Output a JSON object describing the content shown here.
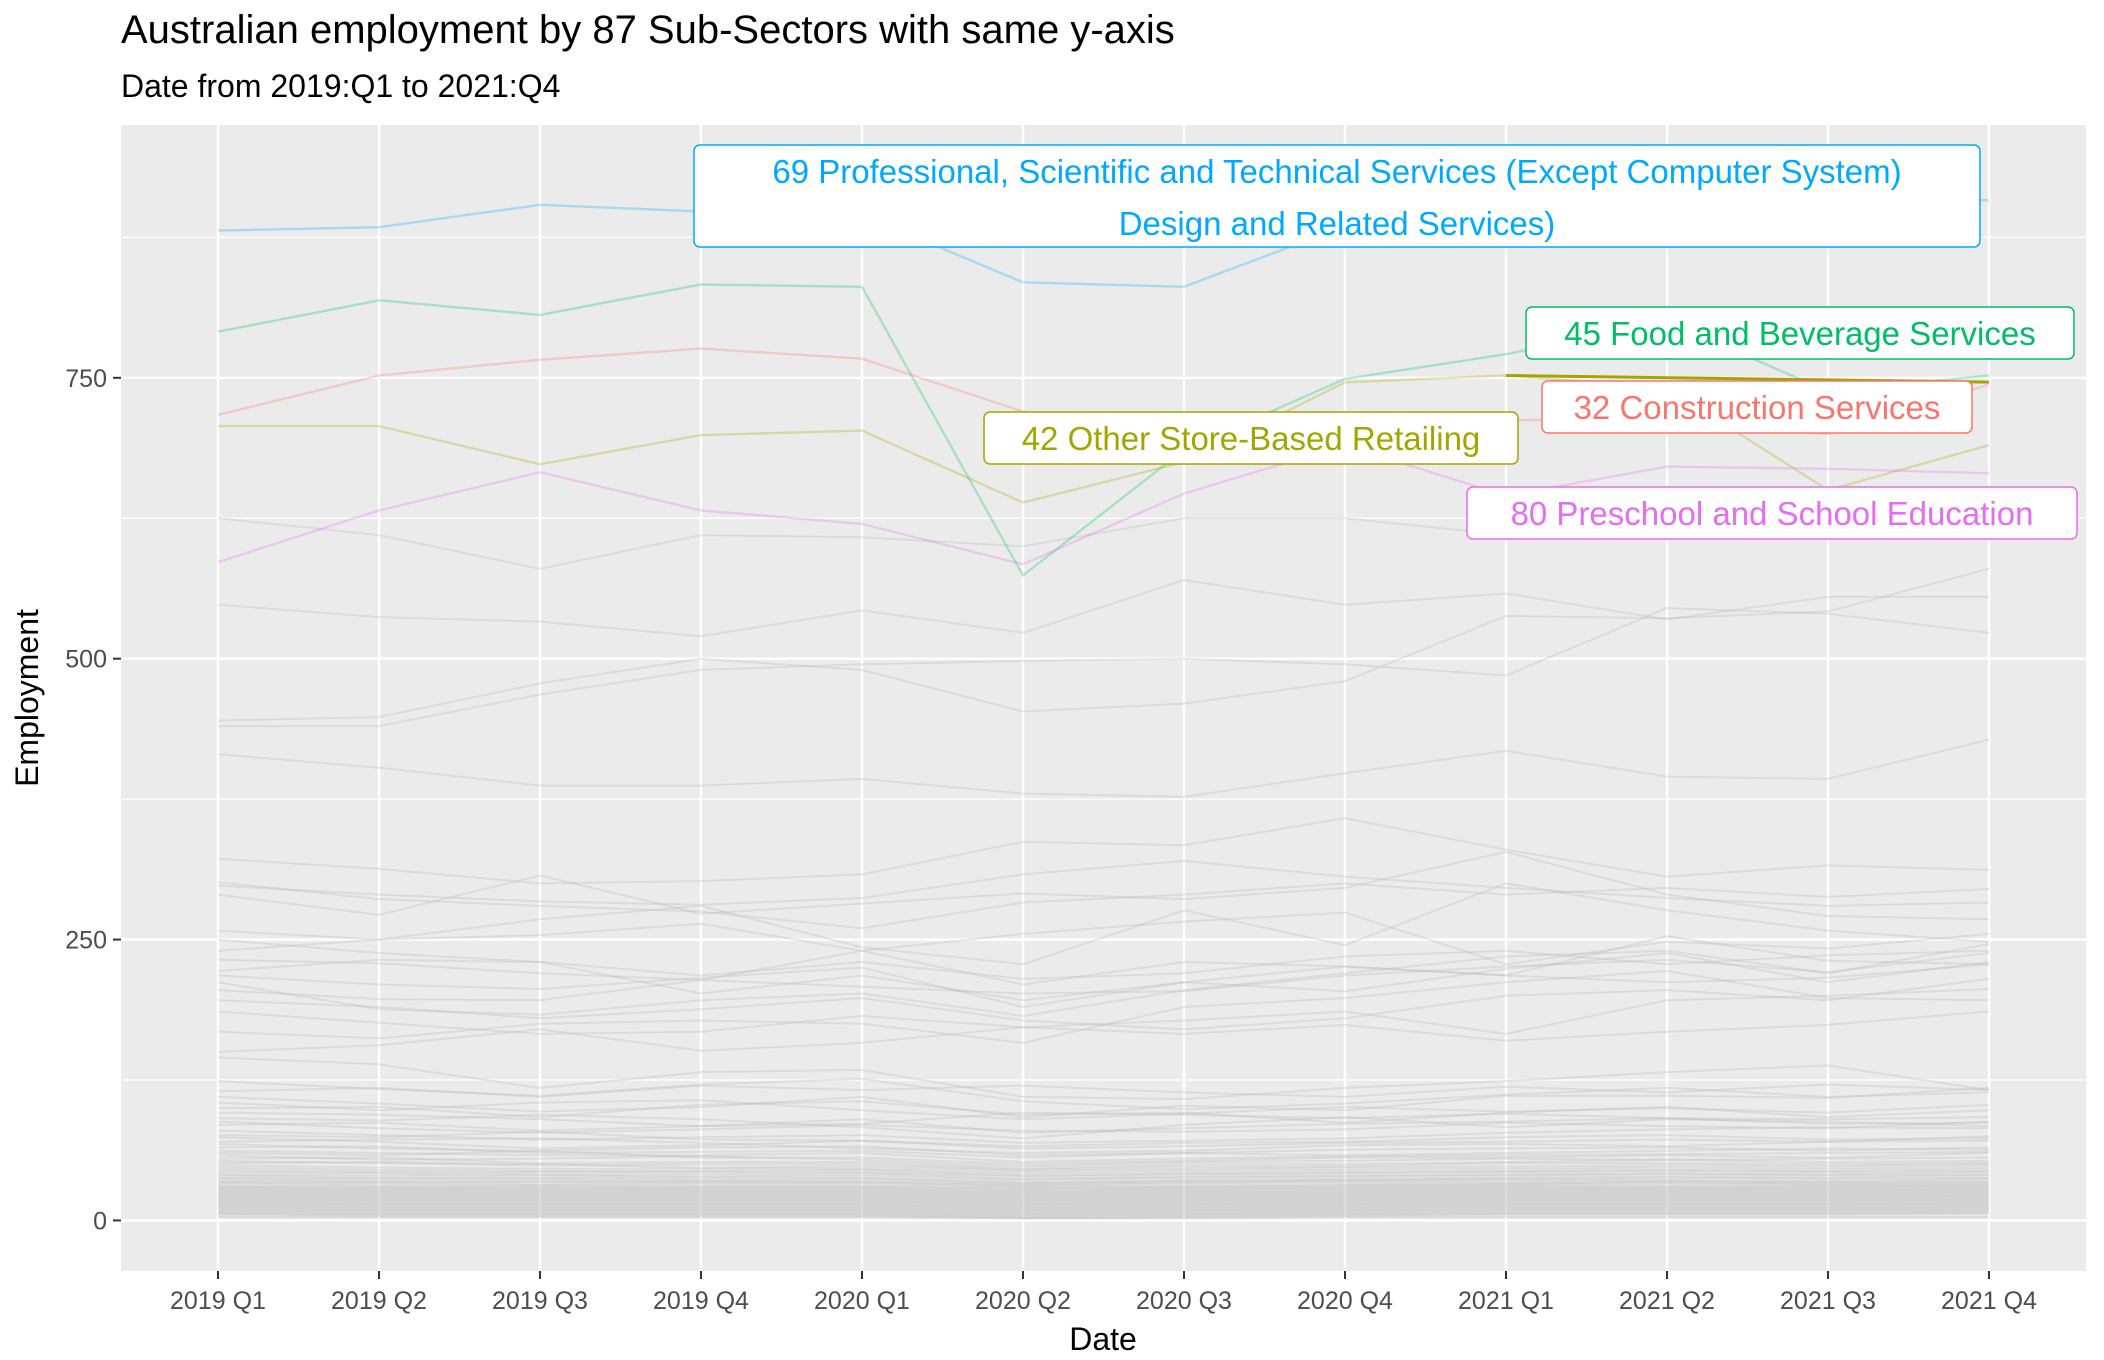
{
  "chart_data": {
    "type": "line",
    "title": "Australian employment by 87 Sub-Sectors with same y-axis",
    "subtitle": "Date from 2019:Q1 to 2021:Q4",
    "xlabel": "Date",
    "ylabel": "Employment",
    "x": [
      "2019 Q1",
      "2019 Q2",
      "2019 Q3",
      "2019 Q4",
      "2020 Q1",
      "2020 Q2",
      "2020 Q3",
      "2020 Q4",
      "2021 Q1",
      "2021 Q2",
      "2021 Q3",
      "2021 Q4"
    ],
    "ylim": [
      -45,
      975
    ],
    "yticks": [
      0,
      250,
      500,
      750
    ],
    "grid": true,
    "background": "#EBEBEB",
    "highlighted_series": [
      {
        "name": "69 Professional, Scientific and Technical Services (Except Computer System) Design and Related Services)",
        "label_lines": [
          "69 Professional, Scientific and Technical Services (Except Computer System)",
          "Design and Related Services)"
        ],
        "color": "#00A9FF",
        "values": [
          881,
          884,
          904,
          898,
          895,
          835,
          831,
          885,
          910,
          905,
          910,
          908
        ]
      },
      {
        "name": "45 Food and Beverage Services",
        "label_lines": [
          "45 Food and Beverage Services"
        ],
        "color": "#00BE67",
        "values": [
          791,
          819,
          806,
          833,
          831,
          574,
          686,
          749,
          771,
          800,
          738,
          752
        ]
      },
      {
        "name": "32 Construction Services",
        "label_lines": [
          "32 Construction Services"
        ],
        "color": "#F8766D",
        "values": [
          717,
          752,
          766,
          776,
          767,
          720,
          698,
          712,
          712,
          715,
          700,
          744
        ]
      },
      {
        "name": "42 Other Store-Based Retailing",
        "label_lines": [
          "42 Other Store-Based Retailing"
        ],
        "color": "#A3A500",
        "values": [
          707,
          707,
          673,
          699,
          703,
          639,
          675,
          746,
          752,
          741,
          650,
          690
        ]
      },
      {
        "name": "80 Preschool and School Education",
        "label_lines": [
          "80 Preschool and School Education"
        ],
        "color": "#E76BF3",
        "values": [
          586,
          632,
          666,
          632,
          620,
          584,
          647,
          690,
          645,
          671,
          669,
          665
        ]
      }
    ],
    "other_sectors": {
      "count": 82,
      "color": "#BEBEBE",
      "series": [
        [
          625,
          610,
          580,
          610,
          608,
          600,
          625,
          625,
          610,
          640,
          645,
          640
        ],
        [
          548,
          537,
          533,
          520,
          543,
          523,
          570,
          548,
          558,
          535,
          555,
          555
        ],
        [
          445,
          448,
          478,
          500,
          490,
          453,
          460,
          480,
          538,
          536,
          542,
          580
        ],
        [
          440,
          440,
          468,
          490,
          495,
          498,
          500,
          495,
          485,
          545,
          540,
          523
        ],
        [
          415,
          403,
          387,
          387,
          393,
          380,
          377,
          398,
          418,
          395,
          393,
          428
        ],
        [
          322,
          313,
          300,
          302,
          308,
          337,
          334,
          358,
          330,
          306,
          316,
          312
        ],
        [
          301,
          286,
          280,
          275,
          260,
          283,
          290,
          300,
          290,
          296,
          288,
          295
        ],
        [
          298,
          290,
          284,
          281,
          287,
          308,
          320,
          306,
          296,
          287,
          280,
          283
        ],
        [
          290,
          272,
          307,
          273,
          282,
          291,
          286,
          296,
          328,
          290,
          271,
          268
        ],
        [
          258,
          250,
          254,
          264,
          240,
          255,
          266,
          274,
          228,
          248,
          242,
          255
        ],
        [
          250,
          238,
          230,
          218,
          230,
          215,
          220,
          235,
          240,
          228,
          236,
          240
        ],
        [
          240,
          250,
          268,
          280,
          243,
          228,
          276,
          245,
          300,
          276,
          258,
          248
        ],
        [
          232,
          229,
          220,
          214,
          240,
          210,
          230,
          226,
          218,
          253,
          231,
          228
        ],
        [
          222,
          232,
          230,
          202,
          218,
          196,
          212,
          226,
          218,
          212,
          216,
          228
        ],
        [
          218,
          210,
          206,
          216,
          225,
          190,
          212,
          204,
          224,
          238,
          212,
          230
        ],
        [
          212,
          188,
          183,
          196,
          202,
          182,
          205,
          220,
          235,
          240,
          220,
          246
        ],
        [
          205,
          197,
          196,
          214,
          208,
          202,
          204,
          218,
          226,
          232,
          221,
          238
        ],
        [
          196,
          190,
          180,
          188,
          198,
          178,
          170,
          180,
          200,
          205,
          196,
          215
        ],
        [
          186,
          176,
          166,
          168,
          182,
          172,
          178,
          186,
          166,
          196,
          200,
          206
        ],
        [
          168,
          162,
          175,
          178,
          175,
          158,
          190,
          198,
          212,
          222,
          198,
          196
        ],
        [
          150,
          156,
          170,
          151,
          158,
          172,
          166,
          174,
          160,
          168,
          174,
          186
        ],
        [
          145,
          139,
          118,
          132,
          134,
          110,
          108,
          118,
          124,
          132,
          138,
          116
        ],
        [
          124,
          117,
          111,
          121,
          126,
          106,
          99,
          104,
          112,
          118,
          110,
          114
        ],
        [
          115,
          118,
          110,
          120,
          116,
          120,
          114,
          110,
          119,
          114,
          121,
          116
        ],
        [
          110,
          104,
          97,
          101,
          110,
          92,
          102,
          98,
          111,
          111,
          109,
          118
        ],
        [
          105,
          98,
          105,
          107,
          98,
          90,
          95,
          101,
          97,
          100,
          96,
          103
        ],
        [
          100,
          101,
          92,
          103,
          106,
          94,
          96,
          87,
          96,
          101,
          92,
          98
        ],
        [
          96,
          94,
          90,
          84,
          86,
          96,
          94,
          91,
          95,
          91,
          90,
          92
        ],
        [
          91,
          89,
          94,
          90,
          83,
          73,
          85,
          92,
          83,
          90,
          88,
          84
        ],
        [
          88,
          82,
          78,
          81,
          85,
          80,
          79,
          81,
          87,
          84,
          82,
          88
        ],
        [
          85,
          87,
          80,
          84,
          90,
          78,
          82,
          86,
          88,
          91,
          86,
          87
        ],
        [
          80,
          76,
          72,
          74,
          76,
          69,
          71,
          73,
          78,
          81,
          83,
          82
        ],
        [
          76,
          74,
          79,
          72,
          71,
          66,
          69,
          70,
          74,
          76,
          72,
          73
        ],
        [
          74,
          70,
          64,
          67,
          71,
          64,
          66,
          69,
          70,
          72,
          70,
          75
        ],
        [
          70,
          72,
          73,
          69,
          64,
          60,
          62,
          67,
          68,
          66,
          70,
          71
        ],
        [
          68,
          64,
          62,
          65,
          66,
          58,
          60,
          63,
          64,
          65,
          62,
          65
        ],
        [
          65,
          66,
          60,
          61,
          62,
          56,
          60,
          58,
          60,
          62,
          64,
          63
        ],
        [
          62,
          60,
          58,
          58,
          60,
          52,
          55,
          57,
          58,
          59,
          60,
          61
        ],
        [
          60,
          58,
          62,
          56,
          56,
          50,
          53,
          56,
          56,
          58,
          56,
          60
        ],
        [
          58,
          54,
          55,
          57,
          54,
          48,
          52,
          53,
          55,
          54,
          55,
          56
        ],
        [
          55,
          56,
          51,
          52,
          52,
          46,
          50,
          50,
          52,
          54,
          52,
          53
        ],
        [
          53,
          51,
          49,
          50,
          50,
          45,
          48,
          48,
          51,
          51,
          50,
          51
        ],
        [
          51,
          52,
          50,
          47,
          48,
          44,
          46,
          47,
          48,
          49,
          48,
          50
        ],
        [
          49,
          47,
          46,
          46,
          46,
          42,
          44,
          45,
          46,
          47,
          46,
          48
        ],
        [
          47,
          45,
          44,
          44,
          45,
          40,
          42,
          43,
          44,
          45,
          44,
          46
        ],
        [
          45,
          43,
          43,
          43,
          43,
          39,
          41,
          42,
          43,
          44,
          43,
          44
        ],
        [
          43,
          42,
          41,
          41,
          42,
          37,
          39,
          40,
          41,
          42,
          41,
          43
        ],
        [
          41,
          40,
          40,
          39,
          40,
          36,
          38,
          39,
          40,
          41,
          40,
          41
        ],
        [
          40,
          38,
          38,
          38,
          38,
          34,
          36,
          37,
          38,
          39,
          38,
          40
        ],
        [
          38,
          37,
          37,
          36,
          37,
          33,
          35,
          36,
          37,
          38,
          37,
          38
        ],
        [
          37,
          35,
          35,
          35,
          35,
          32,
          34,
          35,
          36,
          36,
          35,
          37
        ],
        [
          35,
          34,
          34,
          34,
          34,
          31,
          33,
          34,
          34,
          35,
          34,
          35
        ],
        [
          34,
          33,
          32,
          33,
          33,
          30,
          31,
          32,
          33,
          34,
          33,
          34
        ],
        [
          33,
          31,
          31,
          31,
          31,
          29,
          30,
          31,
          32,
          33,
          32,
          33
        ],
        [
          31,
          30,
          30,
          30,
          30,
          28,
          29,
          30,
          31,
          31,
          31,
          32
        ],
        [
          30,
          29,
          29,
          29,
          29,
          27,
          28,
          29,
          30,
          30,
          30,
          31
        ],
        [
          29,
          28,
          28,
          28,
          28,
          26,
          27,
          28,
          29,
          29,
          29,
          30
        ],
        [
          28,
          27,
          27,
          27,
          27,
          25,
          26,
          27,
          28,
          28,
          28,
          29
        ],
        [
          27,
          26,
          26,
          26,
          26,
          24,
          25,
          26,
          27,
          27,
          27,
          28
        ],
        [
          26,
          25,
          25,
          25,
          25,
          23,
          24,
          25,
          26,
          26,
          26,
          27
        ],
        [
          25,
          24,
          24,
          24,
          24,
          22,
          23,
          24,
          25,
          25,
          25,
          26
        ],
        [
          24,
          23,
          23,
          23,
          23,
          21,
          22,
          23,
          24,
          24,
          24,
          25
        ],
        [
          23,
          22,
          22,
          22,
          22,
          20,
          21,
          22,
          23,
          23,
          23,
          24
        ],
        [
          22,
          21,
          21,
          21,
          21,
          19,
          20,
          21,
          22,
          22,
          22,
          23
        ],
        [
          21,
          20,
          20,
          20,
          20,
          18,
          19,
          20,
          21,
          21,
          21,
          22
        ],
        [
          20,
          19,
          19,
          19,
          19,
          17,
          18,
          19,
          20,
          20,
          20,
          21
        ],
        [
          19,
          18,
          18,
          18,
          18,
          16,
          17,
          18,
          19,
          19,
          19,
          20
        ],
        [
          18,
          17,
          17,
          17,
          17,
          15,
          16,
          17,
          18,
          18,
          18,
          19
        ],
        [
          17,
          16,
          16,
          16,
          16,
          14,
          15,
          16,
          17,
          17,
          17,
          18
        ],
        [
          16,
          15,
          15,
          15,
          15,
          13,
          14,
          15,
          16,
          16,
          16,
          17
        ],
        [
          15,
          14,
          14,
          14,
          14,
          12,
          13,
          14,
          15,
          15,
          15,
          16
        ],
        [
          14,
          13,
          13,
          13,
          13,
          11,
          12,
          13,
          14,
          14,
          14,
          15
        ],
        [
          13,
          12,
          12,
          12,
          12,
          10,
          11,
          12,
          13,
          13,
          13,
          14
        ],
        [
          12,
          11,
          11,
          11,
          11,
          9,
          10,
          11,
          12,
          12,
          12,
          13
        ],
        [
          11,
          10,
          10,
          10,
          10,
          8,
          9,
          10,
          11,
          11,
          11,
          12
        ],
        [
          10,
          9,
          9,
          9,
          9,
          7,
          8,
          9,
          10,
          10,
          10,
          11
        ],
        [
          9,
          8,
          8,
          8,
          8,
          6,
          7,
          8,
          9,
          9,
          9,
          10
        ],
        [
          8,
          7,
          7,
          7,
          7,
          5,
          6,
          7,
          8,
          8,
          8,
          9
        ],
        [
          7,
          6,
          6,
          6,
          6,
          4,
          5,
          6,
          7,
          7,
          7,
          8
        ],
        [
          6,
          5,
          5,
          5,
          5,
          3,
          4,
          5,
          6,
          6,
          6,
          7
        ],
        [
          5,
          4,
          4,
          4,
          4,
          2,
          3,
          4,
          5,
          5,
          5,
          6
        ],
        [
          3,
          3,
          3,
          3,
          3,
          2,
          2,
          3,
          3,
          3,
          3,
          3
        ]
      ]
    }
  }
}
